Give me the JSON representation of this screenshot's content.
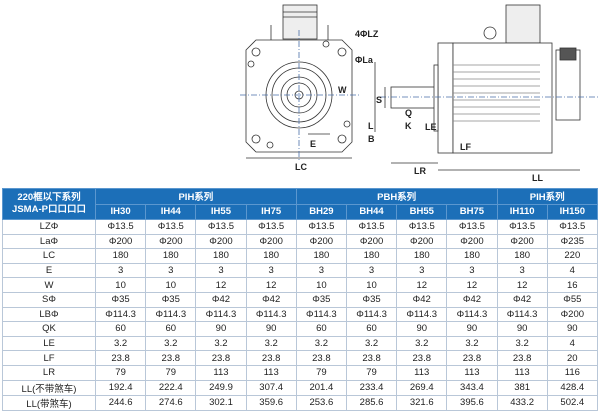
{
  "diagram": {
    "labels": {
      "lz": "4ΦLZ",
      "la": "ΦLa",
      "w": "W",
      "e": "E",
      "lc": "LC",
      "s": "S",
      "q": "Q",
      "k": "K",
      "l": "L",
      "b": "B",
      "le": "LE",
      "lf": "LF",
      "lr": "LR",
      "ll": "LL"
    }
  },
  "table": {
    "corner": [
      "220框以下系列",
      "JSMA-P口口口口"
    ],
    "groups": [
      {
        "label": "PIH系列",
        "span": 4
      },
      {
        "label": "PBH系列",
        "span": 4
      },
      {
        "label": "PIH系列",
        "span": 2
      }
    ],
    "models": [
      "IH30",
      "IH44",
      "IH55",
      "IH75",
      "BH29",
      "BH44",
      "BH55",
      "BH75",
      "IH110",
      "IH150"
    ],
    "rows": [
      {
        "label": "LZΦ",
        "values": [
          "Φ13.5",
          "Φ13.5",
          "Φ13.5",
          "Φ13.5",
          "Φ13.5",
          "Φ13.5",
          "Φ13.5",
          "Φ13.5",
          "Φ13.5",
          "Φ13.5"
        ]
      },
      {
        "label": "LaΦ",
        "values": [
          "Φ200",
          "Φ200",
          "Φ200",
          "Φ200",
          "Φ200",
          "Φ200",
          "Φ200",
          "Φ200",
          "Φ200",
          "Φ235"
        ]
      },
      {
        "label": "LC",
        "values": [
          "180",
          "180",
          "180",
          "180",
          "180",
          "180",
          "180",
          "180",
          "180",
          "220"
        ]
      },
      {
        "label": "E",
        "values": [
          "3",
          "3",
          "3",
          "3",
          "3",
          "3",
          "3",
          "3",
          "3",
          "4"
        ]
      },
      {
        "label": "W",
        "values": [
          "10",
          "10",
          "12",
          "12",
          "10",
          "10",
          "12",
          "12",
          "12",
          "16"
        ]
      },
      {
        "label": "SΦ",
        "values": [
          "Φ35",
          "Φ35",
          "Φ42",
          "Φ42",
          "Φ35",
          "Φ35",
          "Φ42",
          "Φ42",
          "Φ42",
          "Φ55"
        ]
      },
      {
        "label": "LBΦ",
        "values": [
          "Φ114.3",
          "Φ114.3",
          "Φ114.3",
          "Φ114.3",
          "Φ114.3",
          "Φ114.3",
          "Φ114.3",
          "Φ114.3",
          "Φ114.3",
          "Φ200"
        ]
      },
      {
        "label": "QK",
        "values": [
          "60",
          "60",
          "90",
          "90",
          "60",
          "60",
          "90",
          "90",
          "90",
          "90"
        ]
      },
      {
        "label": "LE",
        "values": [
          "3.2",
          "3.2",
          "3.2",
          "3.2",
          "3.2",
          "3.2",
          "3.2",
          "3.2",
          "3.2",
          "4"
        ]
      },
      {
        "label": "LF",
        "values": [
          "23.8",
          "23.8",
          "23.8",
          "23.8",
          "23.8",
          "23.8",
          "23.8",
          "23.8",
          "23.8",
          "20"
        ]
      },
      {
        "label": "LR",
        "values": [
          "79",
          "79",
          "113",
          "113",
          "79",
          "79",
          "113",
          "113",
          "113",
          "116"
        ]
      },
      {
        "label": "LL(不带煞车)",
        "values": [
          "192.4",
          "222.4",
          "249.9",
          "307.4",
          "201.4",
          "233.4",
          "269.4",
          "343.4",
          "381",
          "428.4"
        ]
      },
      {
        "label": "LL(带煞车)",
        "values": [
          "244.6",
          "274.6",
          "302.1",
          "359.6",
          "253.6",
          "285.6",
          "321.6",
          "395.6",
          "433.2",
          "502.4"
        ]
      }
    ]
  },
  "colors": {
    "header": "#1c6fb8",
    "grid": "#b9c7d8"
  }
}
